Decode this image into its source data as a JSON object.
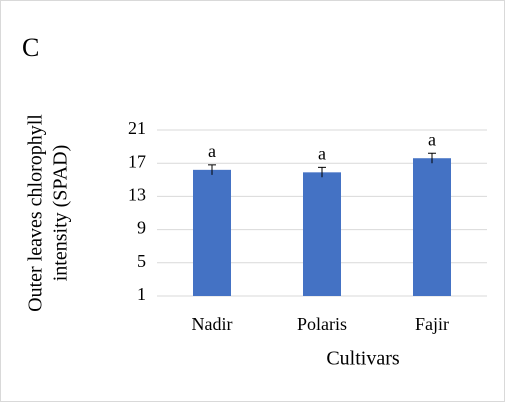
{
  "chart_data": {
    "type": "bar",
    "panel_label": "C",
    "ylabel": [
      "Outer leaves chlorophyll",
      "intensity (SPAD)"
    ],
    "xlabel": "Cultivars",
    "categories": [
      "Nadir",
      "Polaris",
      "Fajir"
    ],
    "values": [
      16.2,
      15.9,
      17.6
    ],
    "errors": [
      0.6,
      0.6,
      0.6
    ],
    "annotations": [
      "a",
      "a",
      "a"
    ],
    "color": "#4472c4",
    "ylim": [
      1,
      21
    ],
    "yticks": [
      1,
      5,
      9,
      13,
      17,
      21
    ],
    "grid": true
  }
}
